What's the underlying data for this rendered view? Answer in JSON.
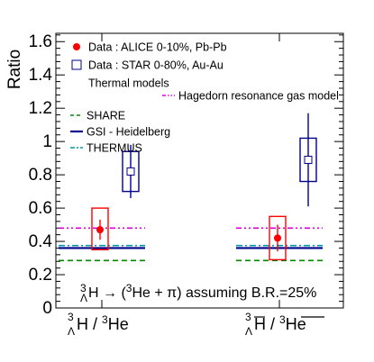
{
  "chart_data": {
    "type": "scatter",
    "ylabel": "Ratio",
    "ylim": [
      0,
      1.65
    ],
    "yticks": [
      "0",
      "0.2",
      "0.4",
      "0.6",
      "0.8",
      "1",
      "1.2",
      "1.4",
      "1.6"
    ],
    "categories": [
      {
        "pre": "3",
        "sub": "Λ",
        "base": "H / ",
        "sup2": "3",
        "base2": "He",
        "bar": false
      },
      {
        "pre": "3",
        "sub": "Λ",
        "base": "H / ",
        "sup2": "3",
        "base2": "He",
        "bar": true
      }
    ],
    "series": [
      {
        "name": "Data : ALICE 0-10%, Pb-Pb",
        "color": "#ff0000",
        "marker": "filled-circle",
        "points": [
          {
            "x": 0,
            "y": 0.47,
            "err": 0.06,
            "sys_low": 0.35,
            "sys_high": 0.6
          },
          {
            "x": 1,
            "y": 0.42,
            "err": 0.08,
            "sys_low": 0.29,
            "sys_high": 0.55
          }
        ]
      },
      {
        "name": "Data : STAR 0-80%, Au-Au",
        "color": "#00008b",
        "marker": "open-square",
        "points": [
          {
            "x": 0,
            "y": 0.82,
            "err": 0.16,
            "sys_low": 0.7,
            "sys_high": 0.94
          },
          {
            "x": 1,
            "y": 0.89,
            "err": 0.28,
            "sys_low": 0.76,
            "sys_high": 1.02
          }
        ]
      }
    ],
    "models_title": "Thermal models",
    "models": [
      {
        "name": "SHARE",
        "color": "#008800",
        "style": "dashed",
        "values": [
          0.285,
          0.285
        ]
      },
      {
        "name": "GSI - Heidelberg",
        "color": "#00008b",
        "style": "solid",
        "values": [
          0.36,
          0.36
        ]
      },
      {
        "name": "THERMUS",
        "color": "#0099aa",
        "style": "dashdot",
        "values": [
          0.375,
          0.375
        ]
      },
      {
        "name": "Hagedorn resonance gas model",
        "color": "#dd00dd",
        "style": "dashdotdot",
        "values": [
          0.48,
          0.48
        ]
      }
    ],
    "annotation": {
      "pre_sup": "3",
      "pre_sub": "Λ",
      "base": "H → (",
      "sup2": "3",
      "base2": "He + π) assuming B.R.=25%"
    }
  }
}
